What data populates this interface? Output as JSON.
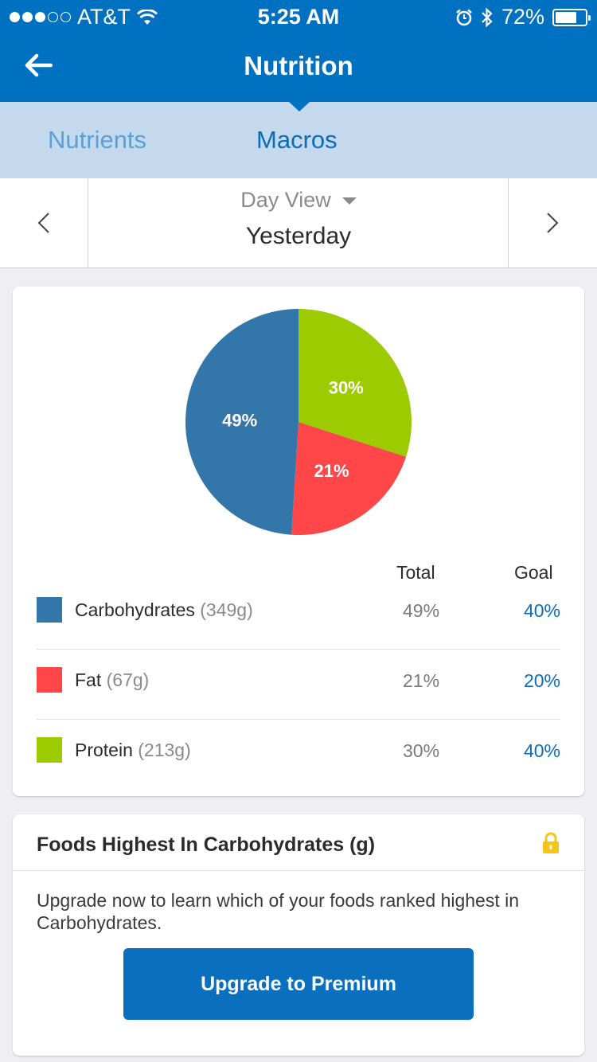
{
  "status_bar": {
    "carrier": "AT&T",
    "signal_bars_filled": 3,
    "signal_bars_total": 5,
    "time": "5:25 AM",
    "battery": "72%",
    "battery_level": 0.72
  },
  "header": {
    "title": "Nutrition"
  },
  "tabs": [
    {
      "label": "Nutrients",
      "selected": false
    },
    {
      "label": "Macros",
      "selected": true
    }
  ],
  "day_selector": {
    "view": "Day View",
    "day": "Yesterday"
  },
  "macros": {
    "columns": {
      "total": "Total",
      "goal": "Goal"
    },
    "rows": [
      {
        "name": "Carbohydrates",
        "grams": "(349g)",
        "total": "49%",
        "goal": "40%",
        "color": "#3276aa"
      },
      {
        "name": "Fat",
        "grams": "(67g)",
        "total": "21%",
        "goal": "20%",
        "color": "#ff4649"
      },
      {
        "name": "Protein",
        "grams": "(213g)",
        "total": "30%",
        "goal": "40%",
        "color": "#9bcb00"
      }
    ]
  },
  "chart_data": {
    "type": "pie",
    "series": [
      {
        "name": "Protein",
        "value": 30,
        "label": "30%",
        "color": "#9bcb00"
      },
      {
        "name": "Fat",
        "value": 21,
        "label": "21%",
        "color": "#ff4649"
      },
      {
        "name": "Carbohydrates",
        "value": 49,
        "label": "49%",
        "color": "#3276aa"
      }
    ]
  },
  "foods_card": {
    "title": "Foods Highest In Carbohydrates (g)",
    "message": "Upgrade now to learn which of your foods ranked highest in Carbohydrates.",
    "button": "Upgrade to Premium",
    "lock_color": "#f5c518"
  }
}
